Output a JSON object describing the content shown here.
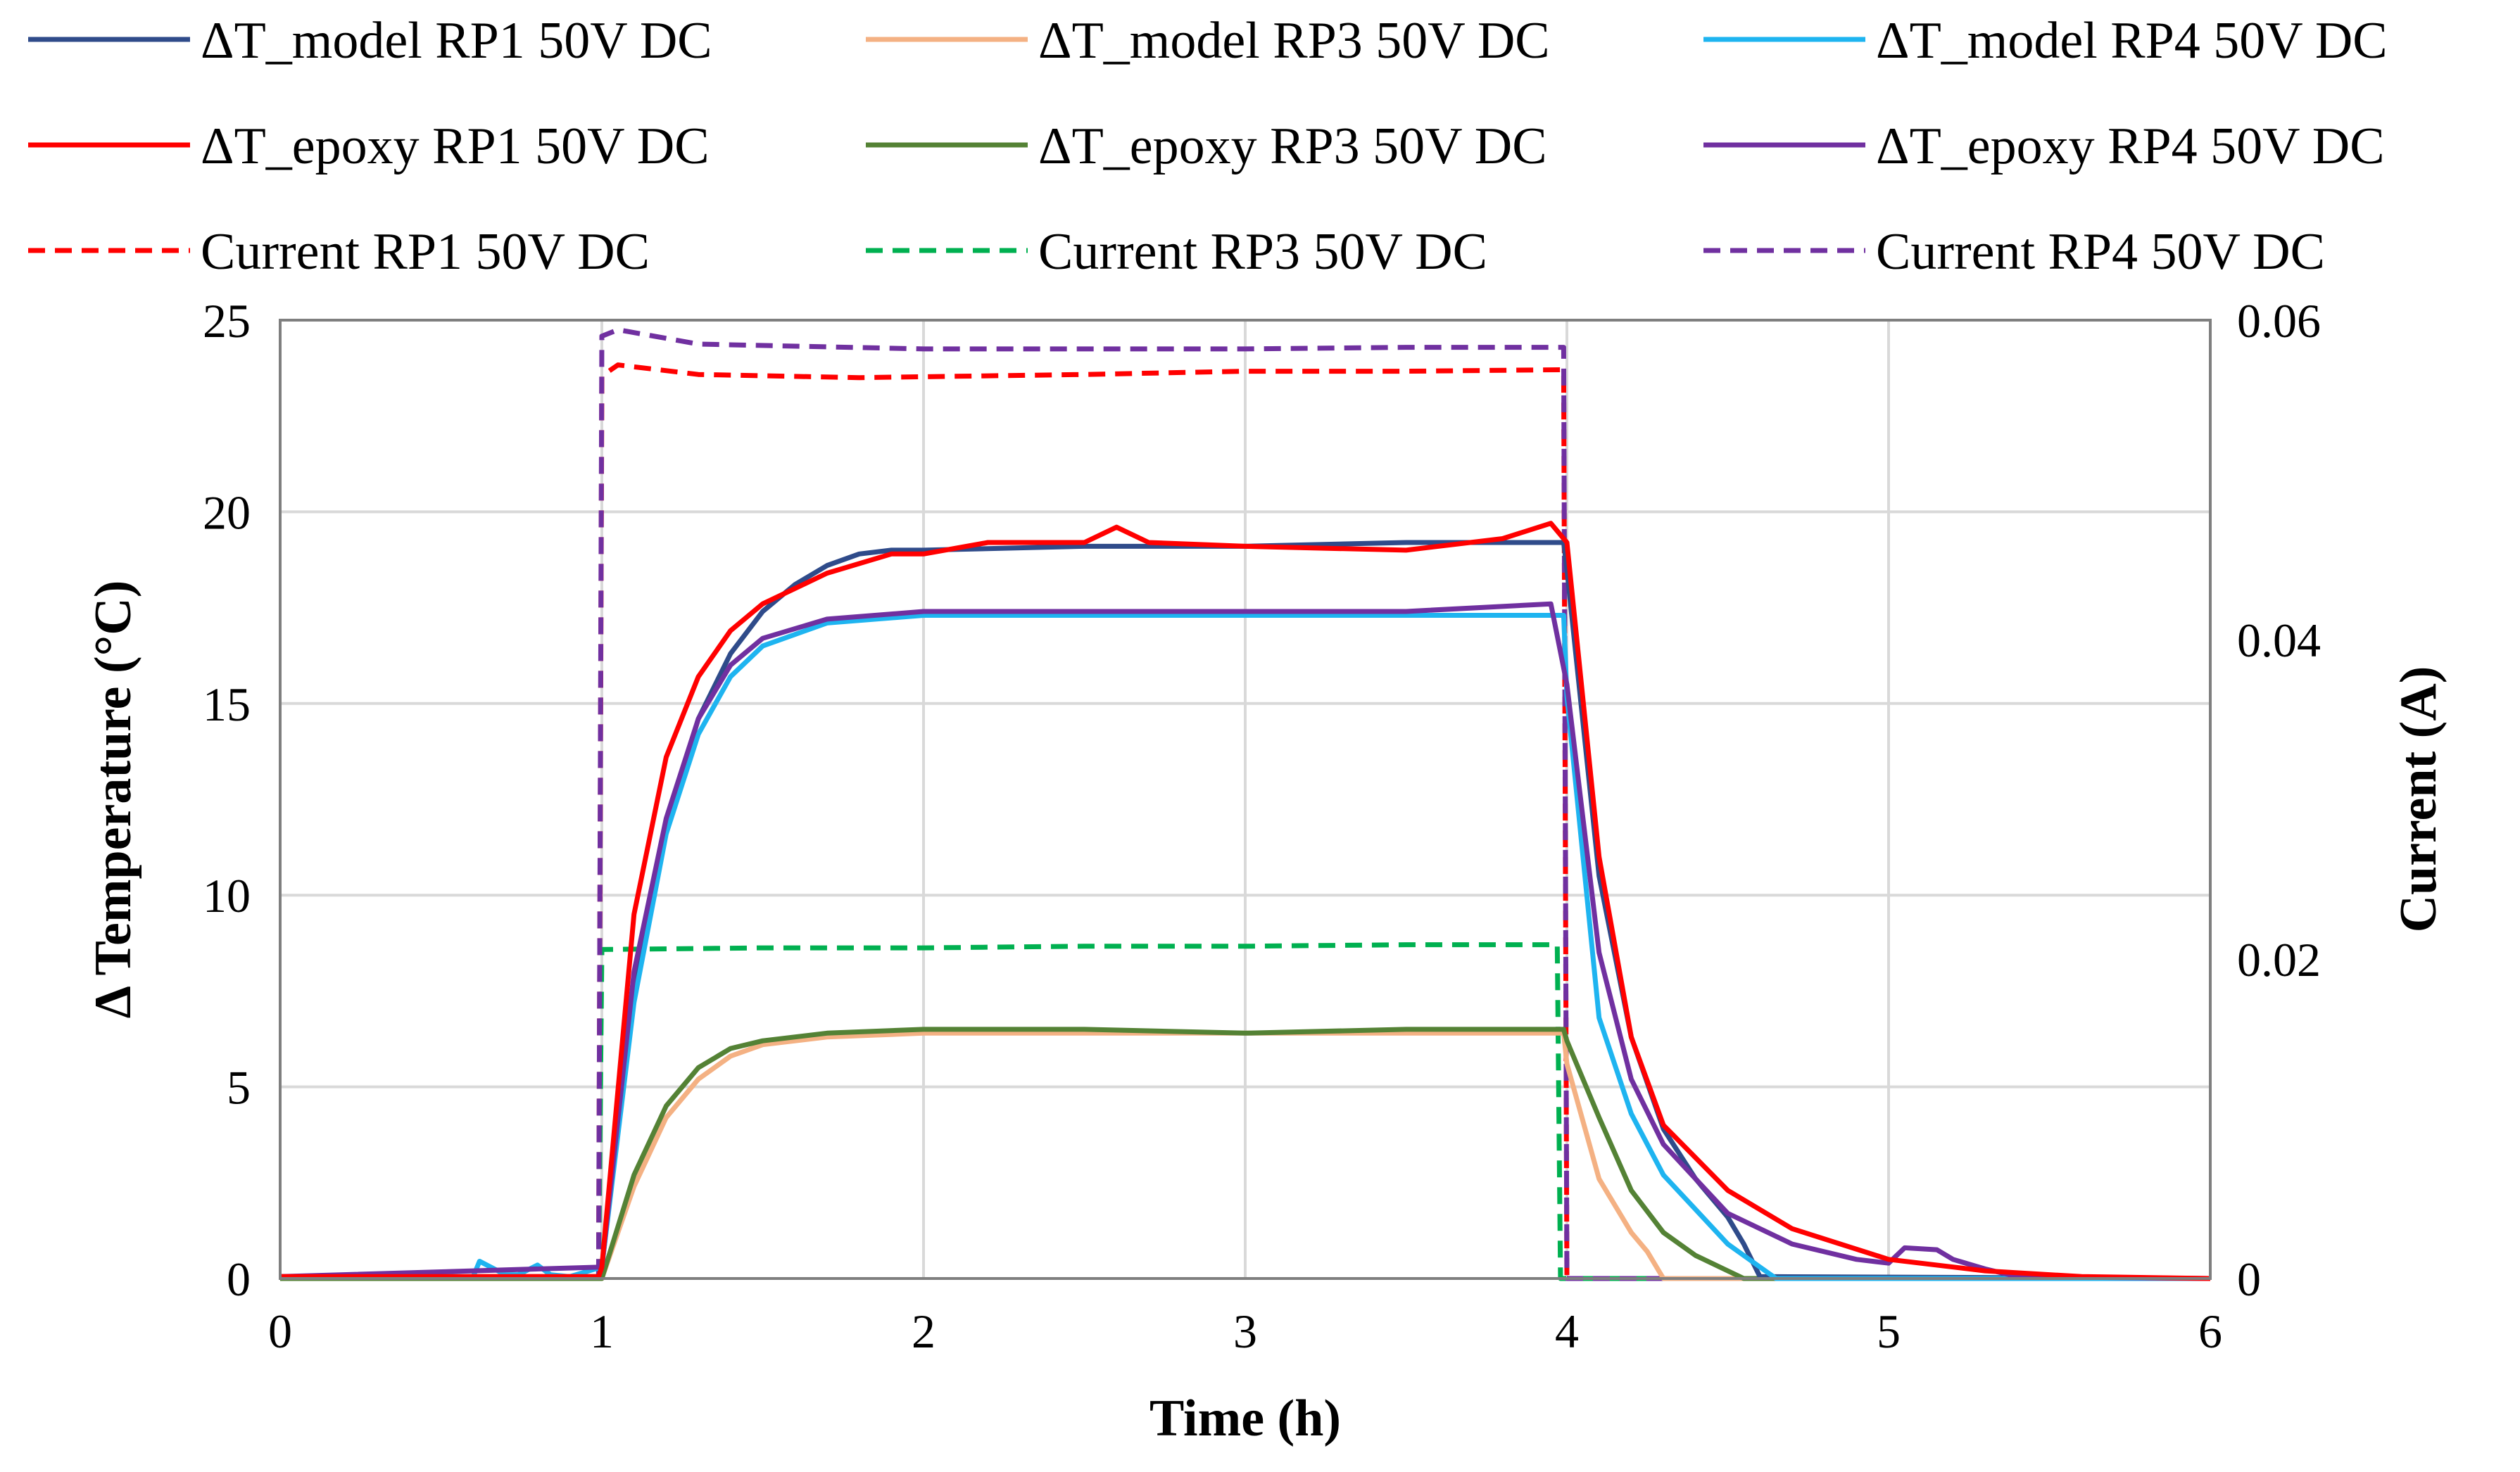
{
  "chart_data": {
    "type": "line",
    "title": "",
    "xlabel": "Time (h)",
    "ylabel": "Δ Temperature (°C)",
    "y2label": "Current (A)",
    "xlim": [
      0,
      6
    ],
    "ylim": [
      0,
      25
    ],
    "y2lim": [
      0,
      0.06
    ],
    "xticks": [
      "0",
      "1",
      "2",
      "3",
      "4",
      "5",
      "6"
    ],
    "yticks": [
      "0",
      "5",
      "10",
      "15",
      "20",
      "25"
    ],
    "y2ticks": [
      "0",
      "0.02",
      "0.04",
      "0.06"
    ],
    "grid": true,
    "legend_position": "top",
    "series": [
      {
        "name": "ΔT_model RP1 50V DC",
        "axis": "left",
        "color": "#2f4b8a",
        "dash": "solid",
        "x": [
          0,
          0.99,
          1.0,
          1.1,
          1.2,
          1.3,
          1.4,
          1.5,
          1.6,
          1.7,
          1.8,
          1.9,
          2.0,
          2.5,
          3.0,
          3.5,
          3.99,
          4.0,
          4.1,
          4.2,
          4.3,
          4.4,
          4.5,
          4.55,
          4.6,
          6.0
        ],
        "values": [
          0.05,
          0.05,
          0.3,
          7.5,
          11.8,
          14.6,
          16.3,
          17.4,
          18.1,
          18.6,
          18.9,
          19.0,
          19.0,
          19.1,
          19.1,
          19.2,
          19.2,
          18.5,
          10.5,
          6.3,
          3.9,
          2.6,
          1.6,
          0.9,
          0.05,
          0.0
        ]
      },
      {
        "name": "ΔT_model RP3 50V DC",
        "axis": "left",
        "color": "#f4b183",
        "dash": "solid",
        "x": [
          0,
          1.0,
          1.1,
          1.2,
          1.3,
          1.4,
          1.5,
          1.7,
          2.0,
          2.5,
          3.0,
          3.5,
          3.99,
          4.0,
          4.1,
          4.2,
          4.25,
          4.3,
          6.0
        ],
        "values": [
          0.0,
          0.0,
          2.4,
          4.2,
          5.2,
          5.8,
          6.1,
          6.3,
          6.4,
          6.4,
          6.4,
          6.4,
          6.4,
          5.6,
          2.6,
          1.2,
          0.7,
          0.0,
          0.0
        ]
      },
      {
        "name": "ΔT_model RP4 50V DC",
        "axis": "left",
        "color": "#1eb4f0",
        "dash": "solid",
        "x": [
          0,
          0.6,
          0.62,
          0.7,
          0.74,
          0.8,
          0.84,
          0.9,
          1.0,
          1.1,
          1.2,
          1.3,
          1.4,
          1.5,
          1.7,
          2.0,
          2.5,
          3.0,
          3.5,
          3.99,
          4.0,
          4.1,
          4.2,
          4.3,
          4.4,
          4.5,
          4.6,
          4.65,
          6.0
        ],
        "values": [
          0.05,
          0.05,
          0.45,
          0.1,
          0.1,
          0.35,
          0.1,
          0.05,
          0.3,
          7.2,
          11.6,
          14.2,
          15.7,
          16.5,
          17.1,
          17.3,
          17.3,
          17.3,
          17.3,
          17.3,
          15.2,
          6.8,
          4.3,
          2.7,
          1.8,
          0.9,
          0.3,
          0.0,
          0.0
        ]
      },
      {
        "name": "ΔT_epoxy RP1 50V DC",
        "axis": "left",
        "color": "#ff0000",
        "dash": "solid",
        "x": [
          0,
          0.99,
          1.0,
          1.1,
          1.2,
          1.3,
          1.4,
          1.5,
          1.7,
          1.9,
          2.0,
          2.2,
          2.5,
          2.6,
          2.7,
          3.0,
          3.5,
          3.8,
          3.95,
          4.0,
          4.1,
          4.2,
          4.3,
          4.5,
          4.7,
          5.0,
          5.3,
          5.6,
          6.0
        ],
        "values": [
          0.05,
          0.05,
          0.3,
          9.5,
          13.6,
          15.7,
          16.9,
          17.6,
          18.4,
          18.9,
          18.9,
          19.2,
          19.2,
          19.6,
          19.2,
          19.1,
          19.0,
          19.3,
          19.7,
          19.2,
          11.0,
          6.3,
          4.0,
          2.3,
          1.3,
          0.5,
          0.2,
          0.05,
          0.0
        ]
      },
      {
        "name": "ΔT_epoxy RP3 50V DC",
        "axis": "left",
        "color": "#548235",
        "dash": "solid",
        "x": [
          0,
          1.0,
          1.1,
          1.2,
          1.3,
          1.4,
          1.5,
          1.7,
          2.0,
          2.5,
          3.0,
          3.5,
          3.99,
          4.0,
          4.1,
          4.2,
          4.3,
          4.4,
          4.5,
          4.55,
          6.0
        ],
        "values": [
          0.0,
          0.0,
          2.7,
          4.5,
          5.5,
          6.0,
          6.2,
          6.4,
          6.5,
          6.5,
          6.4,
          6.5,
          6.5,
          6.2,
          4.2,
          2.3,
          1.2,
          0.6,
          0.2,
          0.0,
          0.0
        ]
      },
      {
        "name": "ΔT_epoxy RP4 50V DC",
        "axis": "left",
        "color": "#7030a0",
        "dash": "solid",
        "x": [
          0,
          1.0,
          1.1,
          1.2,
          1.3,
          1.4,
          1.5,
          1.7,
          2.0,
          2.5,
          3.0,
          3.5,
          3.95,
          4.0,
          4.1,
          4.2,
          4.3,
          4.5,
          4.7,
          4.9,
          5.0,
          5.05,
          5.15,
          5.2,
          5.3,
          5.4,
          6.0
        ],
        "values": [
          0.05,
          0.3,
          8.0,
          12.0,
          14.6,
          16.0,
          16.7,
          17.2,
          17.4,
          17.4,
          17.4,
          17.4,
          17.6,
          15.5,
          8.5,
          5.2,
          3.5,
          1.7,
          0.9,
          0.5,
          0.4,
          0.8,
          0.75,
          0.5,
          0.25,
          0.05,
          0.0
        ]
      },
      {
        "name": "Current RP1 50V DC",
        "axis": "right",
        "color": "#ff0000",
        "dash": "dashed",
        "x": [
          0,
          0.99,
          1.0,
          1.05,
          1.3,
          1.8,
          2.5,
          3.0,
          3.5,
          3.99,
          4.0,
          6.0
        ],
        "values": [
          0.0,
          0.0,
          0.0565,
          0.0572,
          0.0566,
          0.0564,
          0.0566,
          0.0568,
          0.0568,
          0.0569,
          0.0,
          0.0
        ]
      },
      {
        "name": "Current RP3 50V DC",
        "axis": "right",
        "color": "#00b050",
        "dash": "dashed",
        "x": [
          0,
          0.99,
          1.0,
          1.5,
          2.0,
          2.5,
          3.0,
          3.5,
          3.97,
          3.98,
          6.0
        ],
        "values": [
          0.0,
          0.0,
          0.0206,
          0.0207,
          0.0207,
          0.0208,
          0.0208,
          0.0209,
          0.0209,
          0.0,
          0.0
        ]
      },
      {
        "name": "Current RP4 50V DC",
        "axis": "right",
        "color": "#7030a0",
        "dash": "dashed",
        "x": [
          0,
          0.99,
          1.0,
          1.05,
          1.3,
          2.0,
          2.5,
          3.0,
          3.5,
          3.99,
          4.0,
          6.0
        ],
        "values": [
          0.0,
          0.0,
          0.059,
          0.0594,
          0.0585,
          0.0582,
          0.0582,
          0.0582,
          0.0583,
          0.0583,
          0.0,
          0.0
        ]
      }
    ]
  }
}
